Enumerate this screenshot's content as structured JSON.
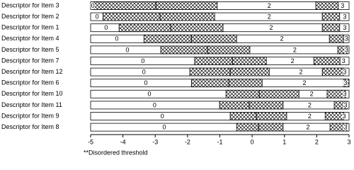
{
  "chart_data": {
    "type": "threshold-bars",
    "xlim": [
      -5,
      3
    ],
    "xticks": [
      -5,
      -4,
      -3,
      -2,
      -1,
      0,
      1,
      2,
      3
    ],
    "footnote": "**Disordered threshold",
    "rows": [
      {
        "name": "Descriptor for Item 3",
        "h1": [
          -4.89,
          -2.98,
          -1.08
        ],
        "h2": [
          1.97,
          2.67
        ],
        "cat_labels": [
          {
            "label": "0",
            "x": -4.93
          },
          {
            "label": "2",
            "x": 0.53
          },
          {
            "label": "3",
            "x": 2.8
          }
        ]
      },
      {
        "name": "Descriptor for Item 2",
        "h1": [
          -4.62,
          -2.85,
          -1.16
        ],
        "h2": [
          2.17,
          2.71
        ],
        "cat_labels": [
          {
            "label": "0",
            "x": -4.8
          },
          {
            "label": "2",
            "x": 0.53
          },
          {
            "label": "3",
            "x": 2.87
          }
        ]
      },
      {
        "name": "Descriptor for Item 1",
        "h1": [
          -4.12,
          -2.52,
          -0.9
        ],
        "h2": [
          2.17,
          2.71
        ],
        "cat_labels": [
          {
            "label": "0",
            "x": -4.52
          },
          {
            "label": "2",
            "x": 0.59
          },
          {
            "label": "3",
            "x": 2.87
          }
        ]
      },
      {
        "name": "Descriptor for Item 4",
        "h1": [
          -3.35,
          -1.88,
          -0.48
        ],
        "h2": [
          2.39,
          2.83
        ],
        "cat_labels": [
          {
            "label": "0",
            "x": -4.19
          },
          {
            "label": "2",
            "x": 0.92
          },
          {
            "label": "3",
            "x": 2.92
          }
        ]
      },
      {
        "name": "Descriptor for Item 5",
        "h1": [
          -2.83,
          -1.38,
          -0.07
        ],
        "h2": [
          2.65,
          2.94
        ],
        "cat_labels": [
          {
            "label": "0",
            "x": -3.86
          },
          {
            "label": "2",
            "x": 1.32
          },
          {
            "label": "3",
            "x": 2.92
          }
        ]
      },
      {
        "name": "Descriptor for Item 7",
        "h1": [
          -1.78,
          -0.61,
          0.44
        ],
        "h2": [
          1.91,
          2.72
        ],
        "cat_labels": [
          {
            "label": "0",
            "x": -3.38
          },
          {
            "label": "2",
            "x": 1.25
          },
          {
            "label": "3",
            "x": 2.83
          }
        ]
      },
      {
        "name": "Descriptor for Item 12",
        "h1": [
          -1.93,
          -0.68,
          0.53
        ],
        "h2": [
          2.17,
          2.83
        ],
        "cat_labels": [
          {
            "label": "0",
            "x": -3.35
          },
          {
            "label": "2",
            "x": 1.51
          },
          {
            "label": "3",
            "x": 2.87
          }
        ]
      },
      {
        "name": "Descriptor for Item 6",
        "h1": [
          -1.88,
          -0.72,
          0.31
        ],
        "h2": [
          2.83,
          3
        ],
        "cat_labels": [
          {
            "label": "0",
            "x": -3.29
          },
          {
            "label": "2",
            "x": 1.62
          },
          {
            "label": "3",
            "x": 2.89
          }
        ]
      },
      {
        "name": "Descriptor for Item 10",
        "h1": [
          -0.81,
          0.22,
          1.45
        ],
        "h2": [
          2.32,
          2.89
        ],
        "cat_labels": [
          {
            "label": "0",
            "x": -3.18
          },
          {
            "label": "2",
            "x": 1.84
          },
          {
            "label": "3",
            "x": 2.87
          }
        ]
      },
      {
        "name": "Descriptor for Item 11",
        "h1": [
          -1.01,
          -0.09,
          0.96
        ],
        "h2": [
          2.54,
          2.94
        ],
        "cat_labels": [
          {
            "label": "0",
            "x": -3.02
          },
          {
            "label": "2",
            "x": 1.78
          },
          {
            "label": "3",
            "x": 2.89
          }
        ]
      },
      {
        "name": "Descriptor for Item 9",
        "h1": [
          -0.68,
          0.13,
          1.07
        ],
        "h2": [
          2.26,
          2.83
        ],
        "cat_labels": [
          {
            "label": "0",
            "x": -2.78
          },
          {
            "label": "2",
            "x": 1.78
          },
          {
            "label": "3",
            "x": 2.85
          }
        ]
      },
      {
        "name": "Descriptor for Item 8",
        "h1": [
          -0.48,
          0.2,
          0.96
        ],
        "h2": [
          2.41,
          2.94
        ],
        "cat_labels": [
          {
            "label": "0",
            "x": -2.72
          },
          {
            "label": "2",
            "x": 1.73
          },
          {
            "label": "3",
            "x": 2.89
          }
        ]
      }
    ]
  }
}
